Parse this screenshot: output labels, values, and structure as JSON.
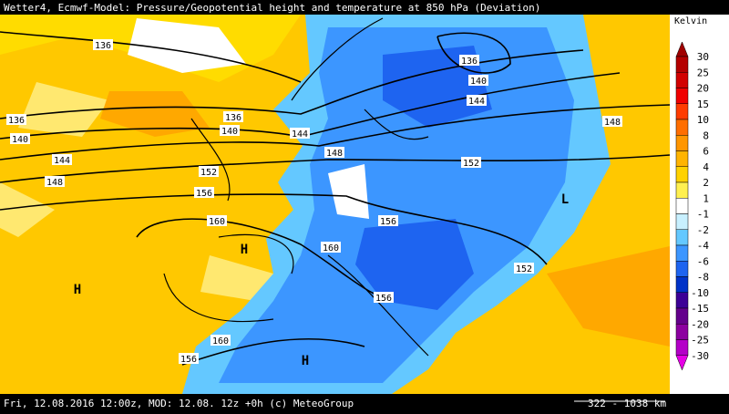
{
  "header": {
    "title": "Wetter4, Ecmwf-Model: Pressure/Geopotential height and temperature at 850 hPa (Deviation)"
  },
  "legend": {
    "unit": "Kelvin",
    "levels": [
      30,
      25,
      20,
      15,
      10,
      8,
      6,
      4,
      2,
      1,
      -1,
      -2,
      -4,
      -6,
      -8,
      -10,
      -15,
      -20,
      -25,
      -30
    ],
    "colors": [
      "#a00000",
      "#b40000",
      "#d20000",
      "#f00000",
      "#ff3c00",
      "#ff6e00",
      "#ff9600",
      "#ffb400",
      "#ffd200",
      "#fff050",
      "#ffffff",
      "#c8f0ff",
      "#64c8ff",
      "#3c96ff",
      "#1e64f0",
      "#0032c8",
      "#3c0096",
      "#64008c",
      "#8c00a0",
      "#b400c8",
      "#e600e6"
    ]
  },
  "map": {
    "contour_labels": [
      136,
      136,
      140,
      144,
      136,
      136,
      140,
      140,
      144,
      148,
      144,
      148,
      152,
      152,
      148,
      156,
      160,
      156,
      160,
      152,
      156,
      160,
      156
    ],
    "pressure_centers": [
      "H",
      "H",
      "H",
      "L"
    ]
  },
  "footer": {
    "info": "Fri, 12.08.2016 12:00z, MOD: 12.08. 12z +0h (c) MeteoGroup",
    "scale": "322 - 1038 km"
  }
}
